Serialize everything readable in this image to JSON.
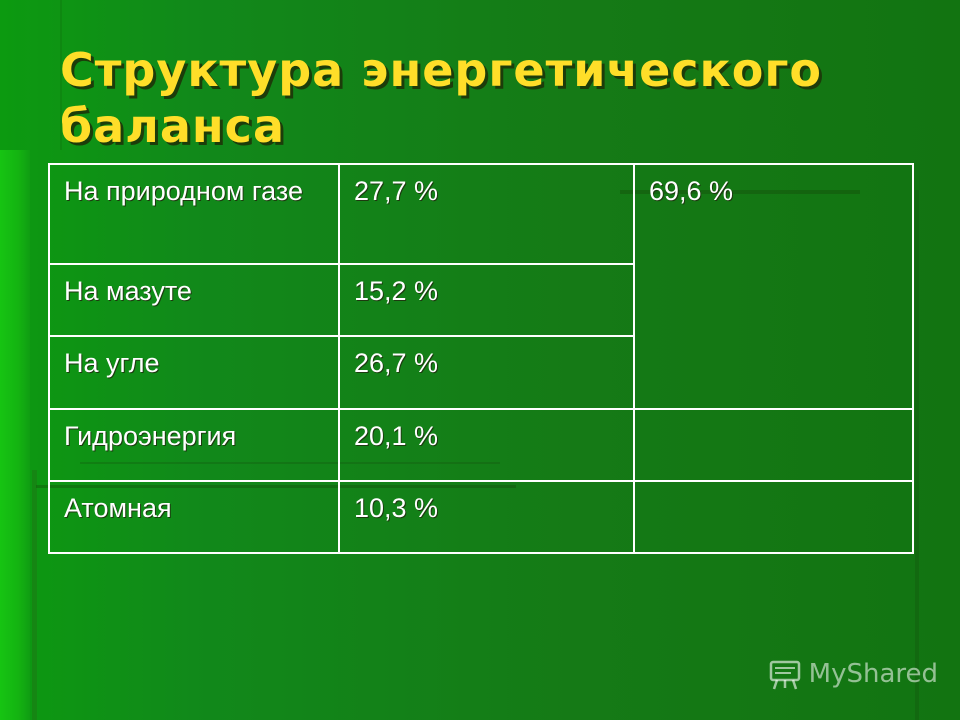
{
  "slide": {
    "title": "Структура энергетического баланса"
  },
  "table": {
    "rows": [
      {
        "source": "На природном газе",
        "share": "27,7 %"
      },
      {
        "source": "На мазуте",
        "share": "15,2 %"
      },
      {
        "source": "На угле",
        "share": "26,7 %"
      },
      {
        "source": "Гидроэнергия",
        "share": "20,1 %"
      },
      {
        "source": "Атомная",
        "share": "10,3 %"
      }
    ],
    "fossil_total": "69,6 %"
  },
  "watermark": {
    "text": "MyShared",
    "icon": "board-icon"
  },
  "colors": {
    "title": "#ffde29",
    "background": "#157a16",
    "table_text": "#ffffff"
  }
}
